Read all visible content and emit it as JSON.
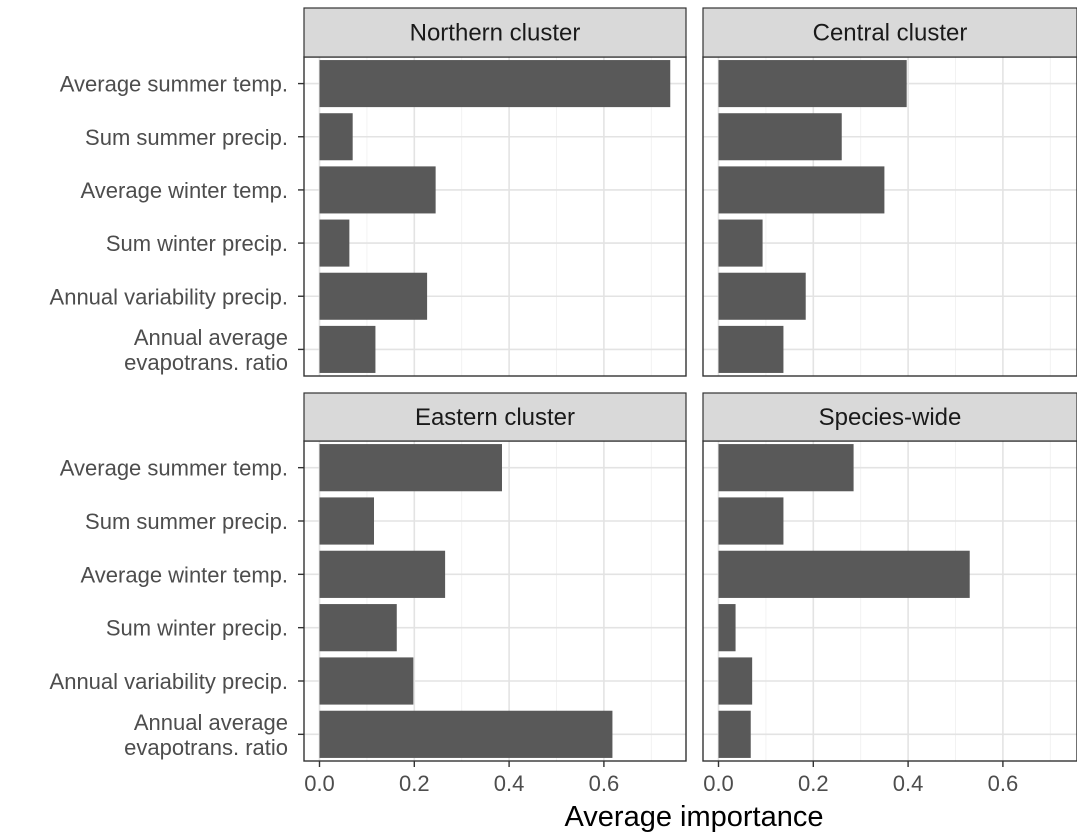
{
  "chart_data": {
    "type": "bar",
    "orientation": "horizontal",
    "layout": "facet-grid-2x2",
    "xlabel": "Average importance",
    "xlim": [
      -0.03,
      0.76
    ],
    "xticks": [
      0.0,
      0.2,
      0.4,
      0.6
    ],
    "xtick_labels": [
      "0.0",
      "0.2",
      "0.4",
      "0.6"
    ],
    "categories": [
      [
        "Average summer temp."
      ],
      [
        "Sum summer precip."
      ],
      [
        "Average winter temp."
      ],
      [
        "Sum winter precip."
      ],
      [
        "Annual variability precip."
      ],
      [
        "Annual average",
        "evapotrans. ratio"
      ]
    ],
    "grid": true,
    "bar_color": "#595959",
    "panels": [
      {
        "title": "Northern cluster",
        "values": [
          0.74,
          0.07,
          0.245,
          0.063,
          0.227,
          0.118
        ]
      },
      {
        "title": "Central cluster",
        "values": [
          0.397,
          0.26,
          0.35,
          0.093,
          0.184,
          0.137
        ]
      },
      {
        "title": "Eastern cluster",
        "values": [
          0.385,
          0.115,
          0.265,
          0.163,
          0.198,
          0.618
        ]
      },
      {
        "title": "Species-wide",
        "values": [
          0.285,
          0.137,
          0.53,
          0.036,
          0.071,
          0.068
        ]
      }
    ]
  }
}
